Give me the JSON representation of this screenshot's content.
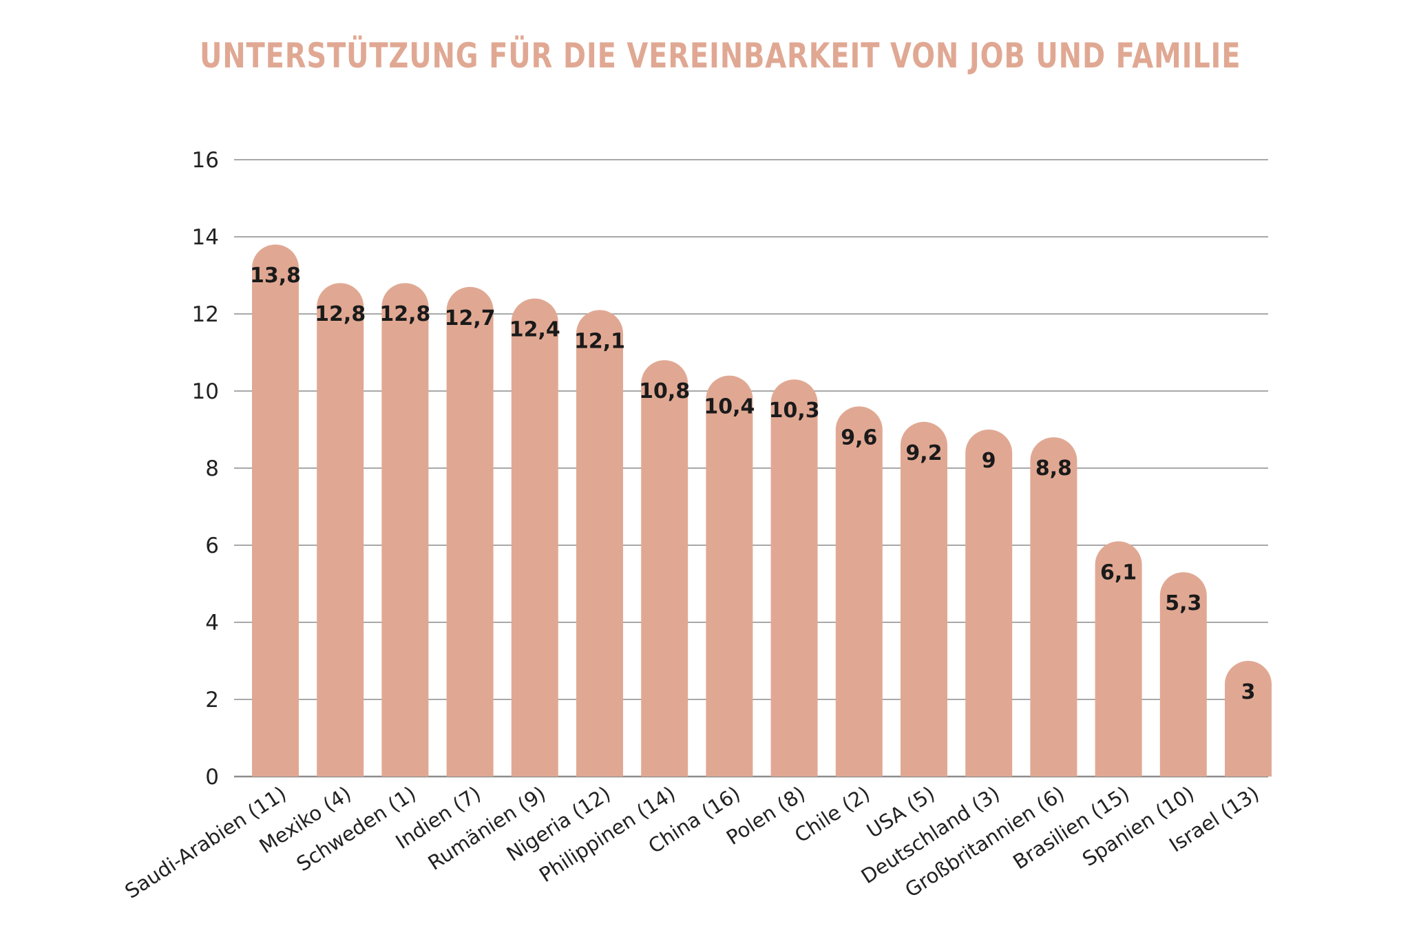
{
  "chart_data": {
    "type": "bar",
    "title": "UNTERSTÜTZUNG FÜR DIE VEREINBARKEIT VON JOB UND FAMILIE",
    "categories": [
      "Saudi-Arabien (11)",
      "Mexiko (4)",
      "Schweden (1)",
      "Indien (7)",
      "Rumänien (9)",
      "Nigeria (12)",
      "Philippinen (14)",
      "China (16)",
      "Polen (8)",
      "Chile (2)",
      "USA (5)",
      "Deutschland (3)",
      "Großbritannien (6)",
      "Brasilien (15)",
      "Spanien (10)",
      "Israel (13)"
    ],
    "values": [
      13.8,
      12.8,
      12.8,
      12.7,
      12.4,
      12.1,
      10.8,
      10.4,
      10.3,
      9.6,
      9.2,
      9,
      8.8,
      6.1,
      5.3,
      3
    ],
    "value_labels": [
      "13,8",
      "12,8",
      "12,8",
      "12,7",
      "12,4",
      "12,1",
      "10,8",
      "10,4",
      "10,3",
      "9,6",
      "9,2",
      "9",
      "8,8",
      "6,1",
      "5,3",
      "3"
    ],
    "y_ticks": [
      "0",
      "2",
      "4",
      "6",
      "8",
      "10",
      "12",
      "14",
      "16"
    ],
    "ylim": [
      0,
      16
    ],
    "grid": true,
    "legend": "none",
    "colors": {
      "bar": "#e0a893",
      "title": "#e0a893",
      "grid": "#8c8c8c"
    }
  }
}
